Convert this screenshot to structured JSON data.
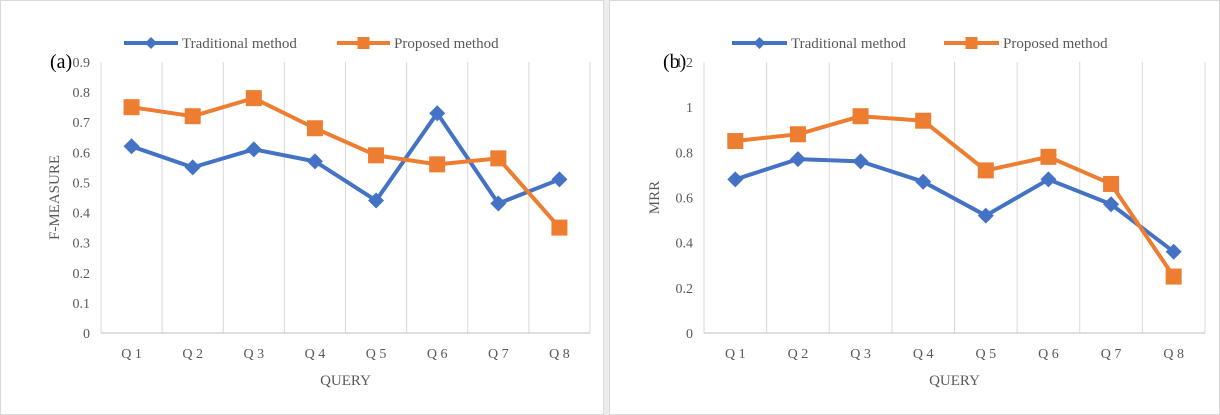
{
  "chart_data": [
    {
      "type": "line",
      "panel_label": "(a)",
      "xlabel": "QUERY",
      "ylabel": "F-MEASURE",
      "categories": [
        "Q 1",
        "Q 2",
        "Q 3",
        "Q 4",
        "Q 5",
        "Q 6",
        "Q 7",
        "Q 8"
      ],
      "ylim": [
        0,
        0.9
      ],
      "yticks": [
        "0",
        "0.1",
        "0.2",
        "0.3",
        "0.4",
        "0.5",
        "0.6",
        "0.7",
        "0.8",
        "0.9"
      ],
      "grid": "vertical",
      "legend_position": "top",
      "series": [
        {
          "name": "Traditional method",
          "color": "#4472c4",
          "marker": "diamond",
          "values": [
            0.62,
            0.55,
            0.61,
            0.57,
            0.44,
            0.73,
            0.43,
            0.51
          ]
        },
        {
          "name": "Proposed method",
          "color": "#ed7d31",
          "marker": "square",
          "values": [
            0.75,
            0.72,
            0.78,
            0.68,
            0.59,
            0.56,
            0.58,
            0.35
          ]
        }
      ]
    },
    {
      "type": "line",
      "panel_label": "(b)",
      "xlabel": "QUERY",
      "ylabel": "MRR",
      "categories": [
        "Q 1",
        "Q 2",
        "Q 3",
        "Q 4",
        "Q 5",
        "Q 6",
        "Q 7",
        "Q 8"
      ],
      "ylim": [
        0,
        1.2
      ],
      "yticks": [
        "0",
        "0.2",
        "0.4",
        "0.6",
        "0.8",
        "1",
        "1.2"
      ],
      "grid": "vertical",
      "legend_position": "top",
      "series": [
        {
          "name": "Traditional method",
          "color": "#4472c4",
          "marker": "diamond",
          "values": [
            0.68,
            0.77,
            0.76,
            0.67,
            0.52,
            0.68,
            0.57,
            0.36
          ]
        },
        {
          "name": "Proposed method",
          "color": "#ed7d31",
          "marker": "square",
          "values": [
            0.85,
            0.88,
            0.96,
            0.94,
            0.72,
            0.78,
            0.66,
            0.25
          ]
        }
      ]
    }
  ]
}
